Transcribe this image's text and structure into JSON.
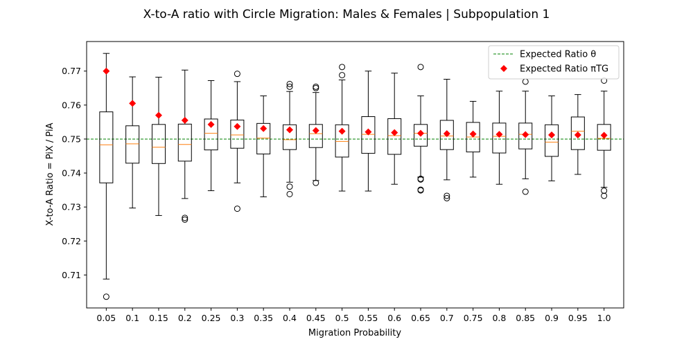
{
  "chart_data": {
    "type": "boxplot",
    "title": "X-to-A ratio with Circle Migration: Males & Females | Subpopulation 1",
    "xlabel": "Migration Probability",
    "ylabel": "X-to-A Ratio = PiX / PiA",
    "categories": [
      "0.05",
      "0.1",
      "0.15",
      "0.2",
      "0.25",
      "0.3",
      "0.35",
      "0.4",
      "0.45",
      "0.5",
      "0.55",
      "0.6",
      "0.65",
      "0.7",
      "0.75",
      "0.8",
      "0.85",
      "0.9",
      "0.95",
      "1.0"
    ],
    "ylim": [
      0.7003,
      0.7787
    ],
    "yticks": [
      0.71,
      0.72,
      0.73,
      0.74,
      0.75,
      0.76,
      0.77
    ],
    "ytick_labels": [
      "0.71",
      "0.72",
      "0.73",
      "0.74",
      "0.75",
      "0.76",
      "0.77"
    ],
    "legend": {
      "placement": "top-right",
      "entries": [
        "Expected Ratio θ",
        "Expected Ratio πTG"
      ]
    },
    "colors": {
      "box": "#000000",
      "median": "#ff7f0e",
      "theta_line": "#008000",
      "pitg_marker": "#ff0000"
    },
    "theta": 0.75,
    "expected_pitg": [
      0.77,
      0.7605,
      0.757,
      0.7555,
      0.7543,
      0.7537,
      0.7531,
      0.7527,
      0.7525,
      0.7523,
      0.7521,
      0.7519,
      0.7517,
      0.7516,
      0.7515,
      0.7514,
      0.7513,
      0.7512,
      0.7512,
      0.7511
    ],
    "boxes": [
      {
        "whislo": 0.7088,
        "q1": 0.7371,
        "med": 0.7483,
        "q3": 0.758,
        "whishi": 0.7752,
        "fliers": [
          0.7036
        ]
      },
      {
        "whislo": 0.7297,
        "q1": 0.7429,
        "med": 0.7486,
        "q3": 0.7539,
        "whishi": 0.7683,
        "fliers": []
      },
      {
        "whislo": 0.7275,
        "q1": 0.7428,
        "med": 0.7476,
        "q3": 0.7543,
        "whishi": 0.7682,
        "fliers": []
      },
      {
        "whislo": 0.7325,
        "q1": 0.7435,
        "med": 0.7484,
        "q3": 0.7544,
        "whishi": 0.7703,
        "fliers": [
          0.7268,
          0.7263
        ]
      },
      {
        "whislo": 0.7348,
        "q1": 0.7468,
        "med": 0.7517,
        "q3": 0.7559,
        "whishi": 0.7672,
        "fliers": []
      },
      {
        "whislo": 0.7371,
        "q1": 0.7473,
        "med": 0.7512,
        "q3": 0.7556,
        "whishi": 0.7669,
        "fliers": [
          0.7692,
          0.7295
        ]
      },
      {
        "whislo": 0.733,
        "q1": 0.7456,
        "med": 0.7503,
        "q3": 0.7546,
        "whishi": 0.7627,
        "fliers": []
      },
      {
        "whislo": 0.7373,
        "q1": 0.7469,
        "med": 0.7498,
        "q3": 0.7542,
        "whishi": 0.764,
        "fliers": [
          0.7662,
          0.7654,
          0.736,
          0.7338
        ]
      },
      {
        "whislo": 0.7378,
        "q1": 0.7475,
        "med": 0.7516,
        "q3": 0.7543,
        "whishi": 0.7637,
        "fliers": [
          0.7654,
          0.765,
          0.7371
        ]
      },
      {
        "whislo": 0.7347,
        "q1": 0.7447,
        "med": 0.7493,
        "q3": 0.7542,
        "whishi": 0.7674,
        "fliers": [
          0.7712,
          0.7688
        ]
      },
      {
        "whislo": 0.7347,
        "q1": 0.7458,
        "med": 0.7514,
        "q3": 0.7566,
        "whishi": 0.77,
        "fliers": []
      },
      {
        "whislo": 0.7367,
        "q1": 0.7455,
        "med": 0.751,
        "q3": 0.756,
        "whishi": 0.7694,
        "fliers": []
      },
      {
        "whislo": 0.7388,
        "q1": 0.7479,
        "med": 0.7517,
        "q3": 0.7543,
        "whishi": 0.7627,
        "fliers": [
          0.7712,
          0.7383,
          0.7381,
          0.7351,
          0.7349
        ]
      },
      {
        "whislo": 0.738,
        "q1": 0.7469,
        "med": 0.7509,
        "q3": 0.7555,
        "whishi": 0.7676,
        "fliers": [
          0.7333,
          0.7326
        ]
      },
      {
        "whislo": 0.7388,
        "q1": 0.7462,
        "med": 0.7506,
        "q3": 0.7549,
        "whishi": 0.7611,
        "fliers": []
      },
      {
        "whislo": 0.7367,
        "q1": 0.7459,
        "med": 0.7508,
        "q3": 0.7547,
        "whishi": 0.7641,
        "fliers": []
      },
      {
        "whislo": 0.7383,
        "q1": 0.7471,
        "med": 0.7514,
        "q3": 0.7547,
        "whishi": 0.7641,
        "fliers": [
          0.7669,
          0.7345
        ]
      },
      {
        "whislo": 0.7377,
        "q1": 0.7449,
        "med": 0.7491,
        "q3": 0.7542,
        "whishi": 0.7627,
        "fliers": []
      },
      {
        "whislo": 0.7396,
        "q1": 0.7469,
        "med": 0.7523,
        "q3": 0.7565,
        "whishi": 0.7631,
        "fliers": []
      },
      {
        "whislo": 0.7358,
        "q1": 0.7467,
        "med": 0.7502,
        "q3": 0.7543,
        "whishi": 0.7641,
        "fliers": [
          0.7672,
          0.7348,
          0.7333
        ]
      }
    ]
  }
}
